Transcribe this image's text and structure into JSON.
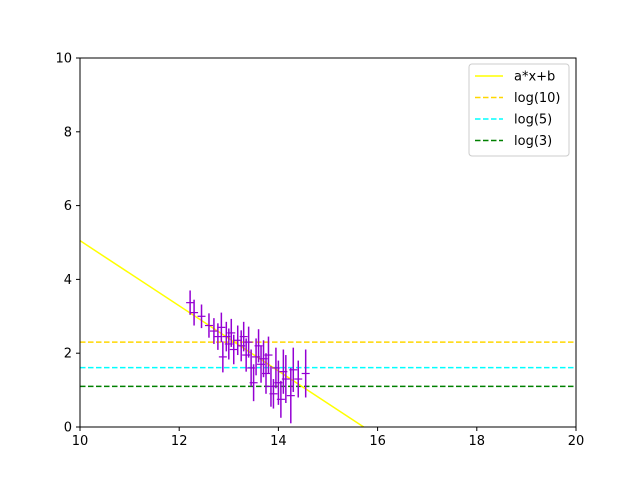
{
  "chart_data": {
    "type": "scatter",
    "title": "",
    "xlabel": "",
    "ylabel": "",
    "xlim": [
      10,
      20
    ],
    "ylim": [
      0,
      10
    ],
    "xticks": [
      "10",
      "12",
      "14",
      "16",
      "18",
      "20"
    ],
    "yticks": [
      "0",
      "2",
      "4",
      "6",
      "8",
      "10"
    ],
    "grid": false,
    "legend_position": "top-right",
    "fit_line": {
      "name": "a*x+b",
      "color": "#ffff00",
      "x": [
        10.0,
        15.72
      ],
      "y": [
        5.05,
        0.0
      ]
    },
    "hlines": [
      {
        "name": "log(10)",
        "y": 2.3,
        "color": "#ffd700",
        "style": "dashed"
      },
      {
        "name": "log(5)",
        "y": 1.61,
        "color": "#00ffff",
        "style": "dashed"
      },
      {
        "name": "log(3)",
        "y": 1.1,
        "color": "#008000",
        "style": "dashed"
      }
    ],
    "points": {
      "color": "#9400d3",
      "data": [
        {
          "x": 12.22,
          "y": 3.37,
          "yerr": 0.33
        },
        {
          "x": 12.3,
          "y": 3.1,
          "yerr": 0.35
        },
        {
          "x": 12.45,
          "y": 3.0,
          "yerr": 0.32
        },
        {
          "x": 12.6,
          "y": 2.75,
          "yerr": 0.33
        },
        {
          "x": 12.7,
          "y": 2.6,
          "yerr": 0.35
        },
        {
          "x": 12.78,
          "y": 2.45,
          "yerr": 0.36
        },
        {
          "x": 12.85,
          "y": 2.7,
          "yerr": 0.4
        },
        {
          "x": 12.88,
          "y": 1.9,
          "yerr": 0.42
        },
        {
          "x": 12.95,
          "y": 2.45,
          "yerr": 0.4
        },
        {
          "x": 13.0,
          "y": 2.25,
          "yerr": 0.42
        },
        {
          "x": 13.05,
          "y": 2.55,
          "yerr": 0.38
        },
        {
          "x": 13.1,
          "y": 2.1,
          "yerr": 0.4
        },
        {
          "x": 13.18,
          "y": 2.35,
          "yerr": 0.4
        },
        {
          "x": 13.25,
          "y": 2.2,
          "yerr": 0.42
        },
        {
          "x": 13.3,
          "y": 2.45,
          "yerr": 0.4
        },
        {
          "x": 13.35,
          "y": 1.95,
          "yerr": 0.45
        },
        {
          "x": 13.4,
          "y": 2.3,
          "yerr": 0.42
        },
        {
          "x": 13.45,
          "y": 1.6,
          "yerr": 0.5
        },
        {
          "x": 13.5,
          "y": 1.2,
          "yerr": 0.5
        },
        {
          "x": 13.55,
          "y": 1.9,
          "yerr": 0.5
        },
        {
          "x": 13.6,
          "y": 2.2,
          "yerr": 0.45
        },
        {
          "x": 13.65,
          "y": 1.7,
          "yerr": 0.5
        },
        {
          "x": 13.7,
          "y": 1.85,
          "yerr": 0.5
        },
        {
          "x": 13.75,
          "y": 1.45,
          "yerr": 0.55
        },
        {
          "x": 13.8,
          "y": 1.95,
          "yerr": 0.5
        },
        {
          "x": 13.85,
          "y": 1.1,
          "yerr": 0.55
        },
        {
          "x": 13.9,
          "y": 0.9,
          "yerr": 0.4
        },
        {
          "x": 13.95,
          "y": 1.6,
          "yerr": 0.55
        },
        {
          "x": 14.0,
          "y": 1.2,
          "yerr": 0.6
        },
        {
          "x": 14.05,
          "y": 0.75,
          "yerr": 0.5
        },
        {
          "x": 14.1,
          "y": 1.5,
          "yerr": 0.6
        },
        {
          "x": 14.15,
          "y": 1.3,
          "yerr": 0.65
        },
        {
          "x": 14.25,
          "y": 0.85,
          "yerr": 0.75
        },
        {
          "x": 14.3,
          "y": 1.55,
          "yerr": 0.6
        },
        {
          "x": 14.4,
          "y": 1.3,
          "yerr": 0.5
        },
        {
          "x": 14.55,
          "y": 1.45,
          "yerr": 0.65
        }
      ]
    }
  }
}
